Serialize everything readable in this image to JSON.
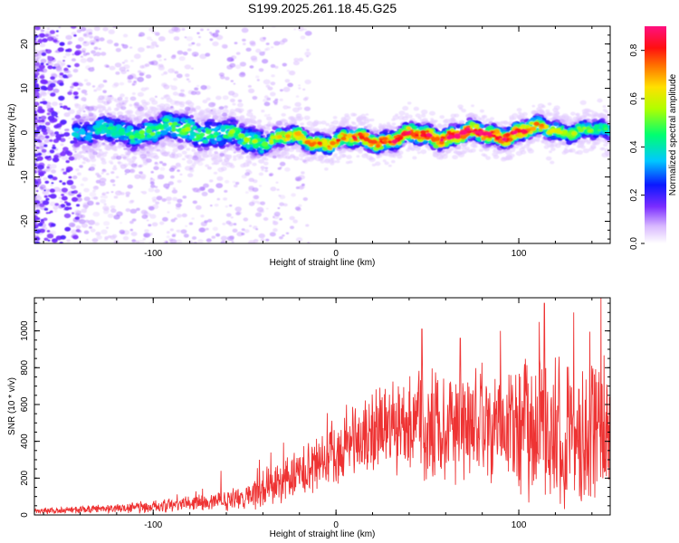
{
  "figure": {
    "title": "S199.2025.261.18.45.G25"
  },
  "chart_data": [
    {
      "type": "heatmap",
      "xlabel": "Height of straight line (km)",
      "ylabel": "Frequency (Hz)",
      "xlim": [
        -165,
        150
      ],
      "ylim": [
        -25,
        24
      ],
      "xticks": [
        -100,
        0,
        100
      ],
      "yticks": [
        -20,
        -10,
        0,
        10,
        20
      ],
      "grid": false,
      "ridge": {
        "x": [
          -140,
          -120,
          -100,
          -80,
          -60,
          -40,
          -20,
          0,
          20,
          40,
          60,
          80,
          100,
          120,
          140,
          150
        ],
        "frequency": [
          0.5,
          0,
          0.5,
          1.0,
          -1.0,
          -1.5,
          -1.5,
          -2.0,
          -1.5,
          -1.0,
          -0.5,
          -0.5,
          0,
          1.0,
          0,
          0
        ],
        "amplitude": [
          0.35,
          0.45,
          0.5,
          0.55,
          0.5,
          0.55,
          0.7,
          0.75,
          0.8,
          0.85,
          0.92,
          0.9,
          0.85,
          0.6,
          0.5,
          0.45
        ]
      },
      "colorbar": {
        "label": "Normalized spectral amplitude",
        "range": [
          0,
          0.9
        ],
        "ticks": [
          0.0,
          0.2,
          0.4,
          0.6,
          0.8
        ]
      }
    },
    {
      "type": "line",
      "xlabel": "Height of straight line (km)",
      "ylabel": "SNR (10 * v/v)",
      "xlim": [
        -165,
        150
      ],
      "ylim": [
        0,
        1180
      ],
      "xticks": [
        -100,
        0,
        100
      ],
      "yticks": [
        0,
        200,
        400,
        600,
        800,
        1000
      ],
      "series": [
        {
          "name": "SNR",
          "color": "#ee3333",
          "envelope_x": [
            -165,
            -140,
            -120,
            -100,
            -80,
            -60,
            -50,
            -40,
            -30,
            -20,
            -10,
            0,
            10,
            20,
            30,
            40,
            50,
            60,
            70,
            80,
            90,
            100,
            110,
            120,
            130,
            140,
            150
          ],
          "envelope_mean": [
            20,
            28,
            35,
            45,
            60,
            85,
            110,
            140,
            170,
            220,
            290,
            340,
            390,
            430,
            470,
            490,
            500,
            500,
            500,
            490,
            480,
            470,
            460,
            450,
            440,
            430,
            420
          ],
          "envelope_spread": [
            15,
            20,
            25,
            30,
            40,
            55,
            75,
            95,
            110,
            130,
            150,
            170,
            190,
            210,
            230,
            250,
            270,
            280,
            290,
            300,
            320,
            340,
            360,
            370,
            380,
            380,
            380
          ],
          "peaks": [
            [
              -63,
              240
            ],
            [
              -42,
              300
            ],
            [
              47,
              1010
            ],
            [
              68,
              960
            ],
            [
              90,
              1000
            ],
            [
              114,
              1150
            ],
            [
              130,
              1100
            ],
            [
              145,
              1180
            ]
          ]
        }
      ]
    }
  ]
}
